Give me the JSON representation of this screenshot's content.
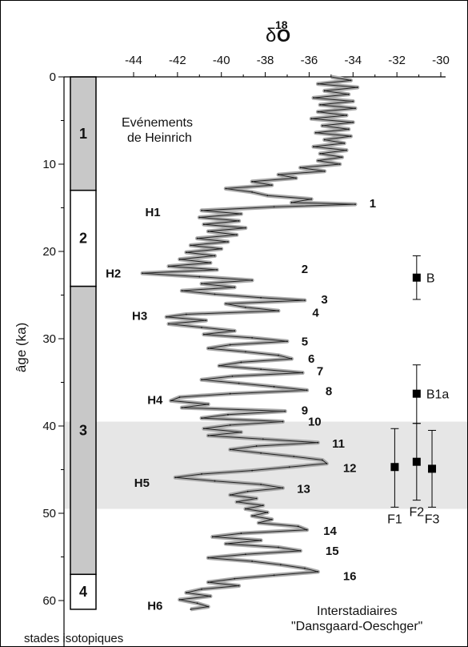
{
  "chart_data": {
    "type": "line",
    "title": "δ18O",
    "title_main": "δ",
    "title_sup": "18",
    "title_end": "O",
    "xlabel": "",
    "ylabel": "âge (ka)",
    "xlim": [
      -46,
      -30
    ],
    "ylim": [
      0,
      62
    ],
    "x_axis_position": "top",
    "x_reversed": false,
    "y_inverted": true,
    "x_ticks": [
      -44,
      -42,
      -40,
      -38,
      -36,
      -34,
      -32,
      -30
    ],
    "x_tick_labels": [
      "-44",
      "-42",
      "-40",
      "-38",
      "-36",
      "-34",
      "-32",
      "-30"
    ],
    "y_ticks": [
      0,
      10,
      20,
      30,
      40,
      50,
      60
    ],
    "y_tick_labels": [
      "0",
      "10",
      "20",
      "30",
      "40",
      "50",
      "60"
    ],
    "series_color": "#aaaaaa",
    "series_outline": "#222222",
    "highlight_band": {
      "from": 39.5,
      "to": 49.5,
      "color": "#e6e6e6"
    },
    "isotope_stages": {
      "caption": "stades isotopiques",
      "stages": [
        {
          "label": "1",
          "from": 0,
          "to": 13,
          "fill": "#c8c8c8"
        },
        {
          "label": "2",
          "from": 13,
          "to": 24,
          "fill": "#ffffff"
        },
        {
          "label": "3",
          "from": 24,
          "to": 57,
          "fill": "#c8c8c8"
        },
        {
          "label": "4",
          "from": 57,
          "to": 61,
          "fill": "#ffffff"
        }
      ]
    },
    "heinrich_label_line1": "Evénements",
    "heinrich_label_line2": "de Heinrich",
    "heinrich_events": [
      {
        "label": "H1",
        "age": 15.5,
        "d18o": -42.7
      },
      {
        "label": "H2",
        "age": 22.5,
        "d18o": -44.5
      },
      {
        "label": "H3",
        "age": 27.4,
        "d18o": -43.3
      },
      {
        "label": "H4",
        "age": 37.0,
        "d18o": -42.6
      },
      {
        "label": "H5",
        "age": 46.5,
        "d18o": -43.2
      },
      {
        "label": "H6",
        "age": 60.6,
        "d18o": -42.6
      }
    ],
    "interstadial_label_line1": "Interstadiaires",
    "interstadial_label_line2": "\"Dansgaard-Oeschger\"",
    "interstadials": [
      {
        "label": "1",
        "age": 14.5,
        "d18o": -33.4
      },
      {
        "label": "2",
        "age": 22.0,
        "d18o": -36.5
      },
      {
        "label": "3",
        "age": 25.5,
        "d18o": -35.6
      },
      {
        "label": "4",
        "age": 27.0,
        "d18o": -36.0
      },
      {
        "label": "5",
        "age": 30.3,
        "d18o": -36.5
      },
      {
        "label": "6",
        "age": 32.3,
        "d18o": -36.2
      },
      {
        "label": "7",
        "age": 33.7,
        "d18o": -35.8
      },
      {
        "label": "8",
        "age": 36.0,
        "d18o": -35.4
      },
      {
        "label": "9",
        "age": 38.2,
        "d18o": -36.5
      },
      {
        "label": "10",
        "age": 39.5,
        "d18o": -36.2
      },
      {
        "label": "11",
        "age": 42.0,
        "d18o": -35.1
      },
      {
        "label": "12",
        "age": 44.8,
        "d18o": -34.6
      },
      {
        "label": "13",
        "age": 47.2,
        "d18o": -36.7
      },
      {
        "label": "14",
        "age": 52.0,
        "d18o": -35.5
      },
      {
        "label": "15",
        "age": 54.3,
        "d18o": -35.4
      },
      {
        "label": "16",
        "age": 57.2,
        "d18o": -34.6
      }
    ],
    "samples": [
      {
        "label": "B",
        "age": 23.0,
        "d18o": -31.1,
        "age_min": 20.5,
        "age_max": 25.5
      },
      {
        "label": "B1a",
        "age": 36.3,
        "d18o": -31.1,
        "age_min": 33.0,
        "age_max": 39.7
      },
      {
        "label": "F1",
        "age": 44.7,
        "d18o": -32.1,
        "age_min": 40.3,
        "age_max": 49.3
      },
      {
        "label": "F2",
        "age": 44.1,
        "d18o": -31.1,
        "age_min": 39.7,
        "age_max": 48.5
      },
      {
        "label": "F3",
        "age": 44.9,
        "d18o": -30.4,
        "age_min": 40.5,
        "age_max": 49.3
      }
    ],
    "series": [
      {
        "points": [
          [
            0.0,
            -35.0
          ],
          [
            0.4,
            -34.1
          ],
          [
            0.8,
            -35.6
          ],
          [
            1.2,
            -33.8
          ],
          [
            1.6,
            -35.3
          ],
          [
            2.0,
            -34.2
          ],
          [
            2.4,
            -35.8
          ],
          [
            2.8,
            -34.0
          ],
          [
            3.2,
            -35.5
          ],
          [
            3.6,
            -33.9
          ],
          [
            4.0,
            -35.6
          ],
          [
            4.4,
            -34.3
          ],
          [
            4.8,
            -35.9
          ],
          [
            5.2,
            -34.0
          ],
          [
            5.6,
            -35.4
          ],
          [
            6.0,
            -34.2
          ],
          [
            6.4,
            -35.7
          ],
          [
            6.8,
            -34.1
          ],
          [
            7.2,
            -35.3
          ],
          [
            7.6,
            -34.4
          ],
          [
            8.0,
            -35.8
          ],
          [
            8.4,
            -34.3
          ],
          [
            8.8,
            -35.5
          ],
          [
            9.2,
            -34.5
          ],
          [
            9.6,
            -35.6
          ],
          [
            10.0,
            -34.6
          ],
          [
            10.4,
            -36.4
          ],
          [
            10.8,
            -35.3
          ],
          [
            11.2,
            -37.4
          ],
          [
            11.6,
            -36.6
          ],
          [
            12.0,
            -38.6
          ],
          [
            12.4,
            -37.7
          ],
          [
            12.8,
            -39.8
          ],
          [
            13.2,
            -38.6
          ],
          [
            13.6,
            -37.9
          ],
          [
            14.0,
            -35.9
          ],
          [
            14.4,
            -36.8
          ],
          [
            14.6,
            -33.9
          ],
          [
            14.9,
            -37.6
          ],
          [
            15.3,
            -40.9
          ],
          [
            15.7,
            -39.1
          ],
          [
            16.1,
            -41.0
          ],
          [
            16.5,
            -39.2
          ],
          [
            16.9,
            -40.8
          ],
          [
            17.3,
            -38.9
          ],
          [
            17.7,
            -40.6
          ],
          [
            18.1,
            -39.3
          ],
          [
            18.5,
            -41.1
          ],
          [
            18.9,
            -39.7
          ],
          [
            19.3,
            -41.4
          ],
          [
            19.7,
            -40.0
          ],
          [
            20.1,
            -41.6
          ],
          [
            20.5,
            -40.3
          ],
          [
            20.9,
            -41.9
          ],
          [
            21.3,
            -40.5
          ],
          [
            21.7,
            -42.4
          ],
          [
            22.1,
            -40.2
          ],
          [
            22.5,
            -43.6
          ],
          [
            22.9,
            -41.0
          ],
          [
            23.3,
            -38.6
          ],
          [
            23.7,
            -40.9
          ],
          [
            24.1,
            -39.4
          ],
          [
            24.5,
            -41.8
          ],
          [
            24.9,
            -40.3
          ],
          [
            25.3,
            -38.2
          ],
          [
            25.6,
            -36.2
          ],
          [
            26.0,
            -39.8
          ],
          [
            26.4,
            -38.9
          ],
          [
            26.8,
            -37.4
          ],
          [
            27.2,
            -41.6
          ],
          [
            27.5,
            -42.5
          ],
          [
            27.9,
            -40.7
          ],
          [
            28.3,
            -42.4
          ],
          [
            28.7,
            -40.9
          ],
          [
            29.1,
            -39.4
          ],
          [
            29.5,
            -40.8
          ],
          [
            29.9,
            -38.6
          ],
          [
            30.3,
            -37.0
          ],
          [
            30.7,
            -39.6
          ],
          [
            31.1,
            -40.6
          ],
          [
            31.5,
            -38.9
          ],
          [
            31.9,
            -37.4
          ],
          [
            32.3,
            -36.8
          ],
          [
            32.7,
            -39.1
          ],
          [
            33.1,
            -40.1
          ],
          [
            33.5,
            -38.2
          ],
          [
            33.9,
            -36.3
          ],
          [
            34.3,
            -39.5
          ],
          [
            34.7,
            -40.9
          ],
          [
            35.1,
            -39.2
          ],
          [
            35.5,
            -37.6
          ],
          [
            35.9,
            -36.1
          ],
          [
            36.3,
            -39.6
          ],
          [
            36.7,
            -41.9
          ],
          [
            37.1,
            -42.3
          ],
          [
            37.5,
            -40.6
          ],
          [
            37.9,
            -41.8
          ],
          [
            38.3,
            -37.1
          ],
          [
            38.7,
            -39.7
          ],
          [
            39.1,
            -40.9
          ],
          [
            39.5,
            -37.2
          ],
          [
            39.9,
            -39.6
          ],
          [
            40.3,
            -40.8
          ],
          [
            40.7,
            -39.1
          ],
          [
            41.1,
            -40.6
          ],
          [
            41.5,
            -38.1
          ],
          [
            41.9,
            -35.6
          ],
          [
            42.3,
            -38.4
          ],
          [
            42.7,
            -39.6
          ],
          [
            43.1,
            -38.2
          ],
          [
            43.5,
            -36.7
          ],
          [
            43.9,
            -35.4
          ],
          [
            44.3,
            -35.2
          ],
          [
            44.7,
            -36.9
          ],
          [
            45.1,
            -38.6
          ],
          [
            45.5,
            -40.9
          ],
          [
            45.9,
            -42.1
          ],
          [
            46.3,
            -40.3
          ],
          [
            46.7,
            -38.2
          ],
          [
            47.1,
            -37.2
          ],
          [
            47.5,
            -38.8
          ],
          [
            47.9,
            -39.6
          ],
          [
            48.3,
            -38.4
          ],
          [
            48.7,
            -39.3
          ],
          [
            49.1,
            -38.1
          ],
          [
            49.5,
            -38.9
          ],
          [
            49.9,
            -37.9
          ],
          [
            50.3,
            -38.6
          ],
          [
            50.7,
            -37.7
          ],
          [
            51.1,
            -38.3
          ],
          [
            51.5,
            -36.5
          ],
          [
            51.9,
            -36.1
          ],
          [
            52.3,
            -39.1
          ],
          [
            52.7,
            -40.4
          ],
          [
            53.1,
            -38.2
          ],
          [
            53.5,
            -39.8
          ],
          [
            53.9,
            -37.4
          ],
          [
            54.3,
            -36.4
          ],
          [
            54.7,
            -38.9
          ],
          [
            55.1,
            -40.6
          ],
          [
            55.5,
            -38.6
          ],
          [
            55.9,
            -37.3
          ],
          [
            56.3,
            -36.2
          ],
          [
            56.7,
            -35.6
          ],
          [
            57.1,
            -37.6
          ],
          [
            57.5,
            -39.4
          ],
          [
            57.9,
            -40.6
          ],
          [
            58.3,
            -39.2
          ],
          [
            58.7,
            -40.9
          ],
          [
            59.1,
            -41.6
          ],
          [
            59.5,
            -40.5
          ],
          [
            59.9,
            -41.9
          ],
          [
            60.3,
            -41.1
          ],
          [
            60.7,
            -40.6
          ],
          [
            61.0,
            -41.4
          ]
        ]
      }
    ]
  }
}
